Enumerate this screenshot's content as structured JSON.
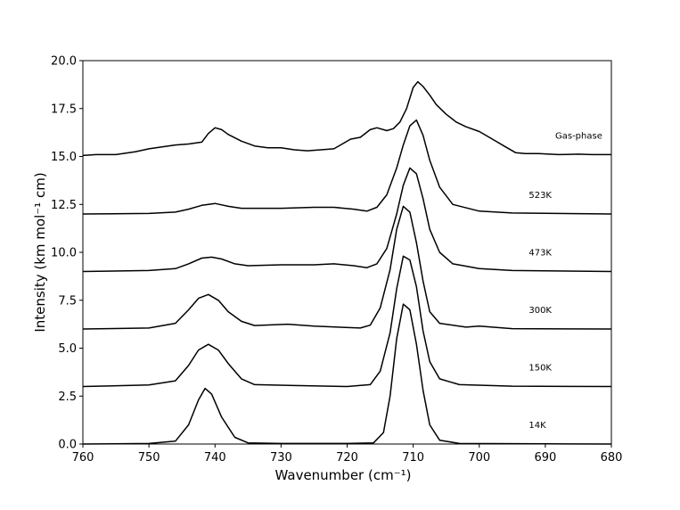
{
  "chart_data": {
    "type": "line",
    "title": "",
    "xlabel": "Wavenumber (cm⁻¹)",
    "ylabel": "Intensity (km mol⁻¹ cm)",
    "xlim": [
      760,
      680
    ],
    "ylim": [
      0,
      20
    ],
    "x_inverted": true,
    "grid": false,
    "xticks": [
      760,
      750,
      740,
      730,
      720,
      710,
      700,
      690,
      680
    ],
    "xtick_labels": [
      "760",
      "750",
      "740",
      "730",
      "720",
      "710",
      "700",
      "690",
      "680"
    ],
    "yticks": [
      0,
      2.5,
      5,
      7.5,
      10,
      12.5,
      15,
      17.5,
      20
    ],
    "ytick_labels": [
      "0.0",
      "2.5",
      "5.0",
      "7.5",
      "10.0",
      "12.5",
      "15.0",
      "17.5",
      "20.0"
    ],
    "series": [
      {
        "name": "14K",
        "label_at": [
          692.5,
          1.0
        ],
        "points": [
          [
            760,
            0.0
          ],
          [
            750,
            0.03
          ],
          [
            746,
            0.15
          ],
          [
            744,
            1.0
          ],
          [
            742.5,
            2.3
          ],
          [
            741.5,
            2.9
          ],
          [
            740.5,
            2.6
          ],
          [
            739,
            1.4
          ],
          [
            737,
            0.35
          ],
          [
            735,
            0.06
          ],
          [
            730,
            0.03
          ],
          [
            725,
            0.03
          ],
          [
            720,
            0.03
          ],
          [
            716,
            0.06
          ],
          [
            714.5,
            0.6
          ],
          [
            713.5,
            2.5
          ],
          [
            712.5,
            5.5
          ],
          [
            711.5,
            7.3
          ],
          [
            710.5,
            7.0
          ],
          [
            709.5,
            5.2
          ],
          [
            708.5,
            2.8
          ],
          [
            707.5,
            1.0
          ],
          [
            706,
            0.2
          ],
          [
            703,
            0.03
          ],
          [
            690,
            0.01
          ],
          [
            680,
            0.0
          ]
        ]
      },
      {
        "name": "150K",
        "label_at": [
          692.5,
          4.0
        ],
        "points": [
          [
            760,
            3.0
          ],
          [
            750,
            3.08
          ],
          [
            746,
            3.3
          ],
          [
            744,
            4.1
          ],
          [
            742.5,
            4.9
          ],
          [
            741,
            5.2
          ],
          [
            739.5,
            4.9
          ],
          [
            738,
            4.2
          ],
          [
            736,
            3.4
          ],
          [
            734,
            3.1
          ],
          [
            728,
            3.05
          ],
          [
            720,
            3.0
          ],
          [
            716.5,
            3.1
          ],
          [
            715,
            3.8
          ],
          [
            713.5,
            5.8
          ],
          [
            712.5,
            8.1
          ],
          [
            711.5,
            9.8
          ],
          [
            710.5,
            9.6
          ],
          [
            709.5,
            8.2
          ],
          [
            708.5,
            5.9
          ],
          [
            707.5,
            4.3
          ],
          [
            706,
            3.4
          ],
          [
            703,
            3.1
          ],
          [
            695,
            3.02
          ],
          [
            680,
            3.0
          ]
        ]
      },
      {
        "name": "300K",
        "label_at": [
          692.5,
          7.0
        ],
        "points": [
          [
            760,
            6.0
          ],
          [
            750,
            6.05
          ],
          [
            746,
            6.3
          ],
          [
            744,
            7.0
          ],
          [
            742.5,
            7.6
          ],
          [
            741,
            7.8
          ],
          [
            739.5,
            7.5
          ],
          [
            738,
            6.9
          ],
          [
            736,
            6.4
          ],
          [
            734,
            6.18
          ],
          [
            729,
            6.25
          ],
          [
            725,
            6.15
          ],
          [
            718,
            6.05
          ],
          [
            716.5,
            6.2
          ],
          [
            715,
            7.1
          ],
          [
            713.5,
            9.1
          ],
          [
            712.5,
            11.2
          ],
          [
            711.5,
            12.4
          ],
          [
            710.5,
            12.1
          ],
          [
            709.5,
            10.5
          ],
          [
            708.5,
            8.5
          ],
          [
            707.5,
            6.9
          ],
          [
            706,
            6.3
          ],
          [
            702,
            6.1
          ],
          [
            700,
            6.15
          ],
          [
            695,
            6.02
          ],
          [
            680,
            6.0
          ]
        ]
      },
      {
        "name": "473K",
        "label_at": [
          692.5,
          10.0
        ],
        "points": [
          [
            760,
            9.0
          ],
          [
            750,
            9.05
          ],
          [
            746,
            9.15
          ],
          [
            744,
            9.4
          ],
          [
            742,
            9.7
          ],
          [
            740.5,
            9.75
          ],
          [
            739,
            9.65
          ],
          [
            737,
            9.4
          ],
          [
            735,
            9.3
          ],
          [
            730,
            9.35
          ],
          [
            725,
            9.35
          ],
          [
            722,
            9.4
          ],
          [
            719,
            9.3
          ],
          [
            717,
            9.2
          ],
          [
            715.5,
            9.4
          ],
          [
            714,
            10.2
          ],
          [
            712.5,
            12.0
          ],
          [
            711.5,
            13.5
          ],
          [
            710.5,
            14.4
          ],
          [
            709.5,
            14.1
          ],
          [
            708.5,
            12.8
          ],
          [
            707.5,
            11.2
          ],
          [
            706,
            10.0
          ],
          [
            704,
            9.4
          ],
          [
            700,
            9.15
          ],
          [
            695,
            9.05
          ],
          [
            680,
            9.0
          ]
        ]
      },
      {
        "name": "523K",
        "label_at": [
          692.5,
          13.0
        ],
        "points": [
          [
            760,
            12.0
          ],
          [
            750,
            12.03
          ],
          [
            746,
            12.1
          ],
          [
            744,
            12.25
          ],
          [
            742,
            12.45
          ],
          [
            740,
            12.55
          ],
          [
            738,
            12.4
          ],
          [
            736,
            12.3
          ],
          [
            730,
            12.3
          ],
          [
            725,
            12.35
          ],
          [
            722,
            12.35
          ],
          [
            719,
            12.25
          ],
          [
            717,
            12.15
          ],
          [
            715.5,
            12.35
          ],
          [
            714,
            13.0
          ],
          [
            712.5,
            14.4
          ],
          [
            711.5,
            15.6
          ],
          [
            710.5,
            16.6
          ],
          [
            709.5,
            16.9
          ],
          [
            708.5,
            16.1
          ],
          [
            707.5,
            14.8
          ],
          [
            706,
            13.4
          ],
          [
            704,
            12.5
          ],
          [
            700,
            12.15
          ],
          [
            695,
            12.05
          ],
          [
            680,
            12.0
          ]
        ]
      },
      {
        "name": "Gas-phase",
        "label_at": [
          688.5,
          16.1
        ],
        "points": [
          [
            760,
            15.05
          ],
          [
            758,
            15.1
          ],
          [
            755,
            15.1
          ],
          [
            752,
            15.25
          ],
          [
            750,
            15.4
          ],
          [
            748,
            15.5
          ],
          [
            746,
            15.6
          ],
          [
            744,
            15.65
          ],
          [
            742,
            15.75
          ],
          [
            741,
            16.2
          ],
          [
            740,
            16.5
          ],
          [
            739,
            16.4
          ],
          [
            738,
            16.15
          ],
          [
            736,
            15.8
          ],
          [
            734,
            15.55
          ],
          [
            732,
            15.45
          ],
          [
            730,
            15.45
          ],
          [
            728,
            15.35
          ],
          [
            726,
            15.3
          ],
          [
            724,
            15.35
          ],
          [
            722,
            15.4
          ],
          [
            721,
            15.6
          ],
          [
            719.5,
            15.9
          ],
          [
            718,
            16.0
          ],
          [
            716.5,
            16.4
          ],
          [
            715.5,
            16.5
          ],
          [
            714,
            16.35
          ],
          [
            713,
            16.45
          ],
          [
            712,
            16.8
          ],
          [
            711,
            17.5
          ],
          [
            710,
            18.6
          ],
          [
            709.3,
            18.9
          ],
          [
            708.5,
            18.65
          ],
          [
            707.5,
            18.2
          ],
          [
            706.5,
            17.7
          ],
          [
            705,
            17.2
          ],
          [
            703.5,
            16.8
          ],
          [
            702,
            16.55
          ],
          [
            700,
            16.3
          ],
          [
            698,
            15.9
          ],
          [
            696,
            15.5
          ],
          [
            694.5,
            15.2
          ],
          [
            693,
            15.15
          ],
          [
            691,
            15.15
          ],
          [
            688,
            15.1
          ],
          [
            685,
            15.12
          ],
          [
            683,
            15.1
          ],
          [
            680,
            15.1
          ]
        ]
      }
    ]
  }
}
